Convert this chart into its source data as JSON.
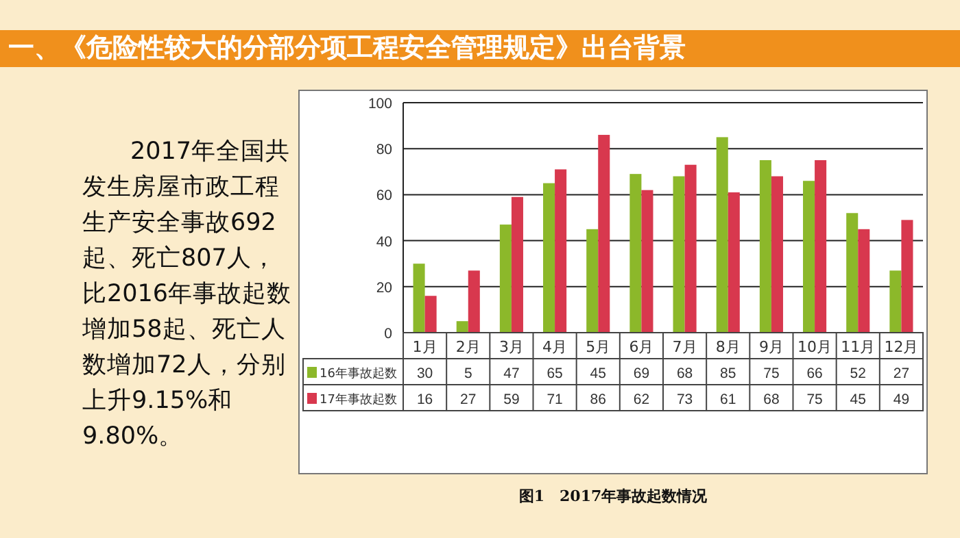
{
  "chart_data": {
    "type": "bar",
    "title": "一、《危险性较大的分部分项工程安全管理规定》出台背景",
    "annotations": [
      "2017年全国共发生房屋市政工程生产安全事故692起、死亡807人，比2016年事故起数增加58起、死亡人数增加72人，分别上升9.15%和9.80%。",
      "图1　2017年事故起数情况"
    ],
    "categories": [
      "1月",
      "2月",
      "3月",
      "4月",
      "5月",
      "6月",
      "7月",
      "8月",
      "9月",
      "10月",
      "11月",
      "12月"
    ],
    "series": [
      {
        "name": "16年事故起数",
        "color": "#8cb82a",
        "values": [
          30,
          5,
          47,
          65,
          45,
          69,
          68,
          85,
          75,
          66,
          52,
          27
        ]
      },
      {
        "name": "17年事故起数",
        "color": "#d8384e",
        "values": [
          16,
          27,
          59,
          71,
          86,
          62,
          73,
          61,
          68,
          75,
          45,
          49
        ]
      }
    ],
    "ylim": [
      0,
      100
    ],
    "yticks": [
      0,
      20,
      40,
      60,
      80,
      100
    ],
    "grid": "y",
    "legend": "bottom",
    "data_labels": true
  }
}
